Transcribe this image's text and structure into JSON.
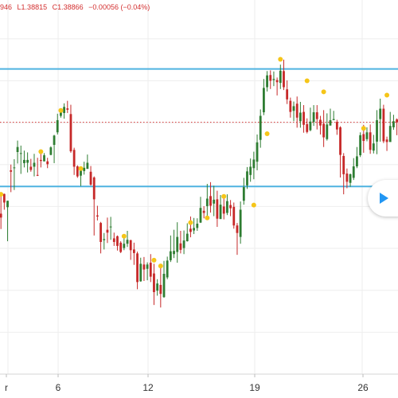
{
  "header": {
    "open_partial": "946",
    "low": "L1.38815",
    "close": "C1.38866",
    "change": "−0.00056 (−0.04%)"
  },
  "colors": {
    "up": "#2e7d32",
    "down": "#c62828",
    "level_line": "#4fb3e0",
    "price_line": "#d32f2f",
    "marker": "#f5c518",
    "grid": "#eeeeee",
    "play": "#2196f3"
  },
  "icons": {
    "play": "play-icon"
  },
  "chart_data": {
    "type": "candlestick",
    "title": "",
    "xlabel": "",
    "ylabel": "",
    "x_ticks": [
      "r",
      "6",
      "12",
      "19",
      "26"
    ],
    "ylim": [
      0,
      100
    ],
    "grid": true,
    "horizontal_levels": [
      85.2,
      52.4
    ],
    "last_price_level": 70.3,
    "candles": [
      [
        55.9,
        54.9,
        57.4,
        48.9
      ],
      [
        44.8,
        43.7,
        50.0,
        40.5
      ],
      [
        50.3,
        47.9,
        50.4,
        45.9
      ],
      [
        46.6,
        48.4,
        48.4,
        37.1
      ],
      [
        56.9,
        56.5,
        58.5,
        50.8
      ],
      [
        57.6,
        57.7,
        60.0,
        51.4
      ],
      [
        62.0,
        63.4,
        65.2,
        58.8
      ],
      [
        61.6,
        61.7,
        63.8,
        55.9
      ],
      [
        58.9,
        59.8,
        62.4,
        57.7
      ],
      [
        59.0,
        59.8,
        61.9,
        56.3
      ],
      [
        57.9,
        57.0,
        60.1,
        56.5
      ],
      [
        57.9,
        59.0,
        61.5,
        55.2
      ],
      [
        55.6,
        55.4,
        60.4,
        55.3
      ],
      [
        59.8,
        59.5,
        61.9,
        57.7
      ],
      [
        59.4,
        61.1,
        61.7,
        59.4
      ],
      [
        59.4,
        58.6,
        60.4,
        57.5
      ],
      [
        61.2,
        63.3,
        63.6,
        61.1
      ],
      [
        64.0,
        66.6,
        66.8,
        58.9
      ],
      [
        67.5,
        70.9,
        72.7,
        66.9
      ],
      [
        72.1,
        73.3,
        73.5,
        71.6
      ],
      [
        72.9,
        74.6,
        75.6,
        71.3
      ],
      [
        74.2,
        73.8,
        76.3,
        72.9
      ],
      [
        72.6,
        62.2,
        75.2,
        61.8
      ],
      [
        62.6,
        57.9,
        63.2,
        55.6
      ],
      [
        58.0,
        55.2,
        58.3,
        54.8
      ],
      [
        55.4,
        56.8,
        57.2,
        52.5
      ],
      [
        56.7,
        57.6,
        59.3,
        55.7
      ],
      [
        57.3,
        59.0,
        61.3,
        57.3
      ],
      [
        56.5,
        52.9,
        58.1,
        52.6
      ],
      [
        54.9,
        48.8,
        55.2,
        38.7
      ],
      [
        44.3,
        44.0,
        47.0,
        42.9
      ],
      [
        42.2,
        36.9,
        42.5,
        33.7
      ],
      [
        37.4,
        37.7,
        39.4,
        34.8
      ],
      [
        40.3,
        39.5,
        43.7,
        36.6
      ],
      [
        41.2,
        41.2,
        43.9,
        37.5
      ],
      [
        37.9,
        36.9,
        39.5,
        35.8
      ],
      [
        38.5,
        35.8,
        38.7,
        34.5
      ],
      [
        36.7,
        34.1,
        37.1,
        33.8
      ],
      [
        35.2,
        36.4,
        38.3,
        34.6
      ],
      [
        36.4,
        37.5,
        40.0,
        35.5
      ],
      [
        37.4,
        34.6,
        37.5,
        31.9
      ],
      [
        34.8,
        33.8,
        36.7,
        30.5
      ],
      [
        33.7,
        25.7,
        34.2,
        23.7
      ],
      [
        25.9,
        30.8,
        32.5,
        25.8
      ],
      [
        30.6,
        29.2,
        32.7,
        26.0
      ],
      [
        29.4,
        30.6,
        31.2,
        26.2
      ],
      [
        31.1,
        27.2,
        33.5,
        25.7
      ],
      [
        28.1,
        22.9,
        30.8,
        19.3
      ],
      [
        23.3,
        25.3,
        26.5,
        21.9
      ],
      [
        24.9,
        22.4,
        29.6,
        18.6
      ],
      [
        21.5,
        28.0,
        31.6,
        21.3
      ],
      [
        27.0,
        31.7,
        32.8,
        26.5
      ],
      [
        31.8,
        34.3,
        38.7,
        31.3
      ],
      [
        33.5,
        34.4,
        40.3,
        32.4
      ],
      [
        34.1,
        38.3,
        42.4,
        31.1
      ],
      [
        36.5,
        34.7,
        40.0,
        33.7
      ],
      [
        35.2,
        37.3,
        40.1,
        33.5
      ],
      [
        37.1,
        39.2,
        42.1,
        37.0
      ],
      [
        40.6,
        39.7,
        44.0,
        38.2
      ],
      [
        40.1,
        40.8,
        43.6,
        39.1
      ],
      [
        40.8,
        42.0,
        43.5,
        40.0
      ],
      [
        42.3,
        46.4,
        49.5,
        42.2
      ],
      [
        45.6,
        45.0,
        46.9,
        43.5
      ],
      [
        46.9,
        49.0,
        53.1,
        43.4
      ],
      [
        49.7,
        47.0,
        53.6,
        45.1
      ],
      [
        47.6,
        48.7,
        52.6,
        44.1
      ],
      [
        48.8,
        43.4,
        51.2,
        41.1
      ],
      [
        43.3,
        47.3,
        50.0,
        43.3
      ],
      [
        46.8,
        44.8,
        50.0,
        43.2
      ],
      [
        45.0,
        48.3,
        50.2,
        44.4
      ],
      [
        47.2,
        46.3,
        48.6,
        44.1
      ],
      [
        46.7,
        41.5,
        47.9,
        40.6
      ],
      [
        41.5,
        39.4,
        42.2,
        33.3
      ],
      [
        38.3,
        45.9,
        48.2,
        36.4
      ],
      [
        48.4,
        52.2,
        54.8,
        47.3
      ],
      [
        52.7,
        56.6,
        57.8,
        51.7
      ],
      [
        55.6,
        57.9,
        60.2,
        53.7
      ],
      [
        57.5,
        59.9,
        62.1,
        54.4
      ],
      [
        59.3,
        64.7,
        66.9,
        56.9
      ],
      [
        65.4,
        72.1,
        73.9,
        63.2
      ],
      [
        73.1,
        79.9,
        82.4,
        72.3
      ],
      [
        80.1,
        83.4,
        84.6,
        78.9
      ],
      [
        83.5,
        81.9,
        84.8,
        79.6
      ],
      [
        82.1,
        82.4,
        84.5,
        80.4
      ],
      [
        82.1,
        81.5,
        82.8,
        77.8
      ],
      [
        81.3,
        84.7,
        86.4,
        79.6
      ],
      [
        84.6,
        80.1,
        87.8,
        79.3
      ],
      [
        79.5,
        76.7,
        82.0,
        75.4
      ],
      [
        76.3,
        73.2,
        77.2,
        71.6
      ],
      [
        73.5,
        74.8,
        76.1,
        70.6
      ],
      [
        75.5,
        71.6,
        77.5,
        68.8
      ],
      [
        70.6,
        73.0,
        76.0,
        68.8
      ],
      [
        73.2,
        69.6,
        75.1,
        67.4
      ],
      [
        69.8,
        67.6,
        71.4,
        67.2
      ],
      [
        68.1,
        70.5,
        74.4,
        67.8
      ],
      [
        70.4,
        73.1,
        75.1,
        69.3
      ],
      [
        73.1,
        71.2,
        75.1,
        68.3
      ],
      [
        71.0,
        69.4,
        72.1,
        66.9
      ],
      [
        69.9,
        66.1,
        73.7,
        63.4
      ],
      [
        65.6,
        69.7,
        72.8,
        65.2
      ],
      [
        69.4,
        70.9,
        74.1,
        69.4
      ],
      [
        70.9,
        71.2,
        73.5,
        71.2
      ],
      [
        70.4,
        68.3,
        71.0,
        66.8
      ],
      [
        68.9,
        61.2,
        69.2,
        54.9
      ],
      [
        60.9,
        55.8,
        61.7,
        50.2
      ],
      [
        56.0,
        53.7,
        57.4,
        51.9
      ],
      [
        53.4,
        55.8,
        56.0,
        52.3
      ],
      [
        54.8,
        58.0,
        60.3,
        54.2
      ],
      [
        58.0,
        60.8,
        63.4,
        57.5
      ],
      [
        61.1,
        66.7,
        67.5,
        60.6
      ],
      [
        67.0,
        65.1,
        69.6,
        61.8
      ],
      [
        65.6,
        67.5,
        68.9,
        65.0
      ],
      [
        67.5,
        62.6,
        69.7,
        61.5
      ],
      [
        62.4,
        64.4,
        66.8,
        61.6
      ],
      [
        64.9,
        70.9,
        73.7,
        61.4
      ],
      [
        71.2,
        74.1,
        76.9,
        64.9
      ],
      [
        74.1,
        65.0,
        75.2,
        64.5
      ],
      [
        65.5,
        64.8,
        66.3,
        62.3
      ],
      [
        64.8,
        69.3,
        73.2,
        67.8
      ],
      [
        68.9,
        70.6,
        72.4,
        68.2
      ],
      [
        71.1,
        70.3,
        71.4,
        66.7
      ]
    ],
    "markers": [
      {
        "index": 1,
        "value": 50.2
      },
      {
        "index": 13,
        "value": 62.1
      },
      {
        "index": 19,
        "value": 73.6
      },
      {
        "index": 25,
        "value": 57.4
      },
      {
        "index": 38,
        "value": 38.5
      },
      {
        "index": 47,
        "value": 31.8
      },
      {
        "index": 49,
        "value": 30.2
      },
      {
        "index": 58,
        "value": 42.3
      },
      {
        "index": 63,
        "value": 43.6
      },
      {
        "index": 68,
        "value": 49.6
      },
      {
        "index": 77,
        "value": 47.2
      },
      {
        "index": 81,
        "value": 67.1
      },
      {
        "index": 85,
        "value": 87.9
      },
      {
        "index": 93,
        "value": 81.9
      },
      {
        "index": 98,
        "value": 78.8
      },
      {
        "index": 110,
        "value": 68.6
      },
      {
        "index": 117,
        "value": 77.9
      }
    ]
  }
}
